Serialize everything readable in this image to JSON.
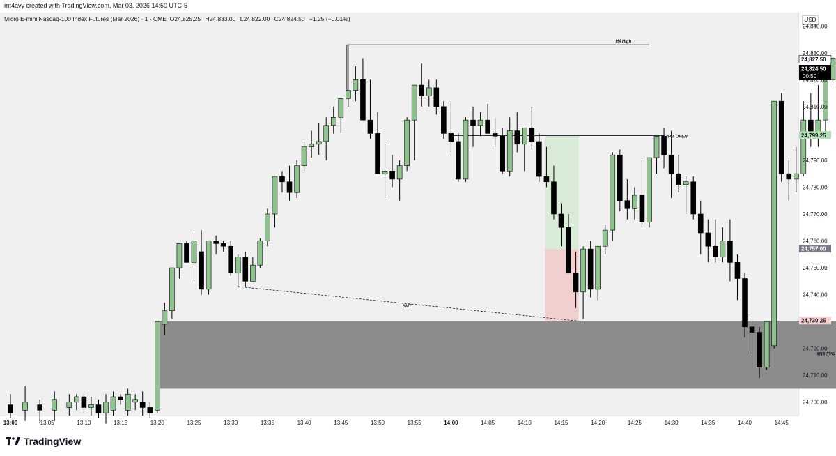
{
  "header": {
    "creator_line": "mt4avy created with TradingView.com, Mar 03, 2026 14:50 UTC-5"
  },
  "legend": {
    "instrument": "Micro E-mini Nasdaq-100 Index Futures (Mar 2026) · 1 · CME",
    "open": "O24,825.25",
    "high": "H24,833.00",
    "low": "L24,822.00",
    "close": "C24,824.50",
    "change": "−1.25 (−0.01%)"
  },
  "currency": "USD",
  "price_tags": [
    {
      "text": "24,827.50",
      "price": 24827.5,
      "bg": "#ffffff",
      "fg": "#131722"
    },
    {
      "text": "24,824.50",
      "price": 24824.5,
      "bg": "#000000",
      "fg": "#ffffff",
      "sub": "00:50"
    },
    {
      "text": "24,799.25",
      "price": 24799.25,
      "bg": "#b2dfb4",
      "fg": "#131722"
    },
    {
      "text": "24,757.00",
      "price": 24757.0,
      "bg": "#787b86",
      "fg": "#ffffff"
    },
    {
      "text": "24,730.25",
      "price": 24730.25,
      "bg": "#f6cfcf",
      "fg": "#131722"
    }
  ],
  "annotations": {
    "h4_high": "H4 High",
    "pm_open": "2PM OPEN",
    "smt": "SMT",
    "fvg": "M15 FVG"
  },
  "brand": "TradingView",
  "colors": {
    "up": "#90c290",
    "down": "#000000",
    "fvg": "#8c8c8c",
    "tp_zone": "#d9ecd7",
    "sl_zone": "#f2cfcf"
  },
  "chart_data": {
    "type": "candlestick",
    "timeframe": "1 minute",
    "x": [
      "13:00",
      "13:05",
      "13:10",
      "13:15",
      "13:20",
      "13:25",
      "13:30",
      "13:35",
      "13:40",
      "13:45",
      "13:50",
      "13:55",
      "14:00",
      "14:05",
      "14:10",
      "14:15",
      "14:20",
      "14:25",
      "14:30",
      "14:35",
      "14:40",
      "14:45"
    ],
    "ylim": [
      24695,
      24845
    ],
    "y_ticks": [
      24700,
      24710,
      24720,
      24730,
      24740,
      24750,
      24760,
      24770,
      24780,
      24790,
      24800,
      24810,
      24820,
      24830,
      24840
    ],
    "levels": {
      "h4_high": 24833.0,
      "pm_open": 24799.25,
      "fvg_top": 24730.25,
      "fvg_bottom": 24705.0,
      "position_entry": 24757.0
    },
    "ohlc_approx": [
      [
        "13:00",
        24699,
        24703,
        24694,
        24696
      ],
      [
        "13:02",
        24697,
        24706,
        24693,
        24700
      ],
      [
        "13:04",
        24699,
        24701,
        24692,
        24697
      ],
      [
        "13:06",
        24697,
        24704,
        24693,
        24701
      ],
      [
        "13:08",
        24698,
        24703,
        24695,
        24700
      ],
      [
        "13:09",
        24700,
        24703,
        24697,
        24702
      ],
      [
        "13:10",
        24702,
        24703,
        24696,
        24698
      ],
      [
        "13:11",
        24698,
        24702,
        24695,
        24699
      ],
      [
        "13:12",
        24699,
        24701,
        24694,
        24696
      ],
      [
        "13:13",
        24696,
        24703,
        24692,
        24700
      ],
      [
        "13:14",
        24697,
        24704,
        24695,
        24702
      ],
      [
        "13:15",
        24702,
        24703,
        24699,
        24701
      ],
      [
        "13:16",
        24697,
        24705,
        24695,
        24703
      ],
      [
        "13:17",
        24700,
        24703,
        24697,
        24701
      ],
      [
        "13:18",
        24700,
        24704,
        24695,
        24698
      ],
      [
        "13:19",
        24698,
        24700,
        24694,
        24696
      ],
      [
        "13:20",
        24697,
        24730,
        24696,
        24730
      ],
      [
        "13:21",
        24729,
        24737,
        24725,
        24734
      ],
      [
        "13:22",
        24734,
        24750,
        24731,
        24750
      ],
      [
        "13:23",
        24750,
        24759,
        24746,
        24759
      ],
      [
        "13:24",
        24759,
        24760,
        24752,
        24752
      ],
      [
        "13:25",
        24752,
        24763,
        24745,
        24760
      ],
      [
        "13:26",
        24756,
        24764,
        24740,
        24742
      ],
      [
        "13:27",
        24742,
        24760,
        24740,
        24760
      ],
      [
        "13:28",
        24760,
        24762,
        24755,
        24759
      ],
      [
        "13:29",
        24759,
        24760,
        24756,
        24758
      ],
      [
        "13:30",
        24758,
        24760,
        24747,
        24748
      ],
      [
        "13:31",
        24748,
        24755,
        24743,
        24754
      ],
      [
        "13:32",
        24754,
        24756,
        24743,
        24745
      ],
      [
        "13:33",
        24745,
        24754,
        24745,
        24751
      ],
      [
        "13:34",
        24751,
        24761,
        24750,
        24760
      ],
      [
        "13:35",
        24760,
        24772,
        24758,
        24770
      ],
      [
        "13:36",
        24770,
        24784,
        24765,
        24784
      ],
      [
        "13:37",
        24784,
        24786,
        24778,
        24782
      ],
      [
        "13:38",
        24782,
        24788,
        24775,
        24778
      ],
      [
        "13:39",
        24778,
        24790,
        24776,
        24788
      ],
      [
        "13:40",
        24788,
        24797,
        24786,
        24795
      ],
      [
        "13:41",
        24795,
        24801,
        24791,
        24796
      ],
      [
        "13:42",
        24796,
        24804,
        24792,
        24797
      ],
      [
        "13:43",
        24797,
        24806,
        24790,
        24803
      ],
      [
        "13:44",
        24803,
        24810,
        24800,
        24806
      ],
      [
        "13:45",
        24806,
        24813,
        24800,
        24813
      ],
      [
        "13:46",
        24813,
        24833,
        24810,
        24816
      ],
      [
        "13:47",
        24816,
        24825,
        24812,
        24820
      ],
      [
        "13:48",
        24820,
        24828,
        24805,
        24805
      ],
      [
        "13:49",
        24805,
        24820,
        24798,
        24800
      ],
      [
        "13:50",
        24800,
        24808,
        24785,
        24785
      ],
      [
        "13:51",
        24785,
        24796,
        24776,
        24786
      ],
      [
        "13:52",
        24786,
        24792,
        24780,
        24783
      ],
      [
        "13:53",
        24783,
        24790,
        24775,
        24788
      ],
      [
        "13:54",
        24788,
        24806,
        24786,
        24805
      ],
      [
        "13:55",
        24805,
        24815,
        24790,
        24818
      ],
      [
        "13:56",
        24818,
        24826,
        24810,
        24814
      ],
      [
        "13:57",
        24814,
        24820,
        24810,
        24817
      ],
      [
        "13:58",
        24817,
        24820,
        24807,
        24810
      ],
      [
        "13:59",
        24810,
        24812,
        24798,
        24800
      ],
      [
        "14:00",
        24800,
        24812,
        24793,
        24797
      ],
      [
        "14:01",
        24797,
        24800,
        24782,
        24783
      ],
      [
        "14:02",
        24783,
        24806,
        24782,
        24805
      ],
      [
        "14:03",
        24805,
        24810,
        24795,
        24803
      ],
      [
        "14:04",
        24803,
        24808,
        24799,
        24805
      ],
      [
        "14:05",
        24805,
        24811,
        24800,
        24800
      ],
      [
        "14:06",
        24800,
        24806,
        24795,
        24799
      ],
      [
        "14:07",
        24799,
        24802,
        24785,
        24786
      ],
      [
        "14:08",
        24786,
        24806,
        24784,
        24801
      ],
      [
        "14:09",
        24801,
        24808,
        24793,
        24796
      ],
      [
        "14:10",
        24796,
        24802,
        24786,
        24802
      ],
      [
        "14:11",
        24802,
        24810,
        24794,
        24797
      ],
      [
        "14:12",
        24797,
        24800,
        24782,
        24784
      ],
      [
        "14:13",
        24784,
        24795,
        24780,
        24782
      ],
      [
        "14:14",
        24782,
        24788,
        24768,
        24770
      ],
      [
        "14:15",
        24770,
        24774,
        24758,
        24765
      ],
      [
        "14:16",
        24765,
        24770,
        24748,
        24748
      ],
      [
        "14:17",
        24748,
        24756,
        24735,
        24741
      ],
      [
        "14:18",
        24741,
        24758,
        24731,
        24757
      ],
      [
        "14:19",
        24757,
        24760,
        24739,
        24742
      ],
      [
        "14:20",
        24742,
        24758,
        24738,
        24758
      ],
      [
        "14:21",
        24758,
        24766,
        24755,
        24764
      ],
      [
        "14:22",
        24764,
        24793,
        24760,
        24792
      ],
      [
        "14:23",
        24792,
        24794,
        24771,
        24775
      ],
      [
        "14:24",
        24775,
        24783,
        24768,
        24772
      ],
      [
        "14:25",
        24772,
        24780,
        24768,
        24777
      ],
      [
        "14:26",
        24777,
        24790,
        24765,
        24767
      ],
      [
        "14:27",
        24767,
        24790,
        24765,
        24791
      ],
      [
        "14:28",
        24791,
        24797,
        24785,
        24799
      ],
      [
        "14:29",
        24799,
        24802,
        24787,
        24792
      ],
      [
        "14:30",
        24792,
        24801,
        24776,
        24785
      ],
      [
        "14:31",
        24785,
        24792,
        24778,
        24781
      ],
      [
        "14:32",
        24781,
        24784,
        24770,
        24782
      ],
      [
        "14:33",
        24782,
        24784,
        24768,
        24770
      ],
      [
        "14:34",
        24770,
        24775,
        24755,
        24763
      ],
      [
        "14:35",
        24763,
        24768,
        24752,
        24758
      ],
      [
        "14:36",
        24758,
        24768,
        24752,
        24754
      ],
      [
        "14:37",
        24754,
        24765,
        24752,
        24760
      ],
      [
        "14:38",
        24760,
        24768,
        24745,
        24752
      ],
      [
        "14:39",
        24752,
        24755,
        24738,
        24746
      ],
      [
        "14:40",
        24746,
        24748,
        24724,
        24728
      ],
      [
        "14:41",
        24728,
        24732,
        24718,
        24726
      ],
      [
        "14:42",
        24726,
        24728,
        24709,
        24713
      ],
      [
        "14:43",
        24713,
        24730,
        24712,
        24730
      ],
      [
        "14:44",
        24721,
        24812,
        24720,
        24812
      ],
      [
        "14:45",
        24812,
        24815,
        24782,
        24785
      ],
      [
        "14:46",
        24785,
        24790,
        24775,
        24783
      ],
      [
        "14:47",
        24783,
        24795,
        24778,
        24785
      ],
      [
        "14:48",
        24785,
        24812,
        24784,
        24805
      ],
      [
        "14:49",
        24805,
        24815,
        24795,
        24800
      ],
      [
        "14:50",
        24800,
        24818,
        24795,
        24805
      ],
      [
        "14:51",
        24805,
        24825,
        24800,
        24820
      ],
      [
        "14:52",
        24820,
        24830,
        24818,
        24828
      ],
      [
        "14:53",
        24828,
        24845,
        24824,
        24840
      ],
      [
        "14:54",
        24840,
        24845,
        24824,
        24824
      ]
    ]
  }
}
